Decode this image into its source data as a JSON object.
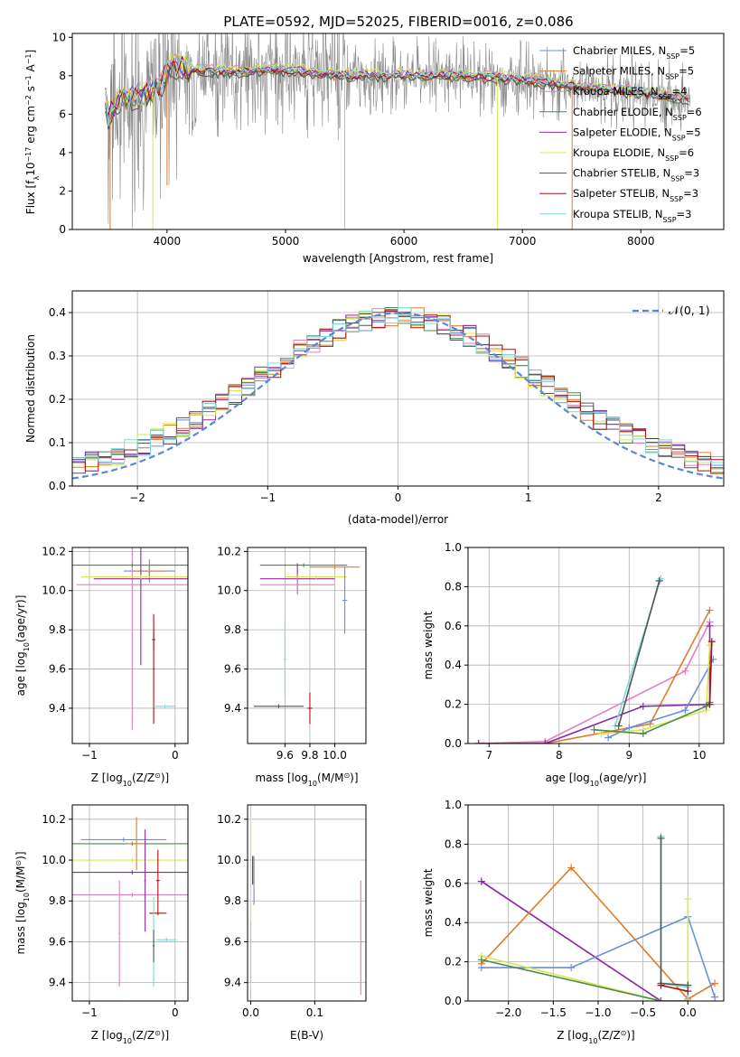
{
  "title": "PLATE=0592, MJD=52025, FIBERID=0016, z=0.086",
  "colors": [
    "#6a8fd8",
    "#e07b2a",
    "#e27fbf",
    "#4c8a4c",
    "#8a2aa8",
    "#d8e850",
    "#555555",
    "#aa1111",
    "#7fd8d8"
  ],
  "spectrum_color": "#8a8a8a",
  "chart_data": [
    {
      "id": "spectrum",
      "type": "line",
      "xlabel": "wavelength [Angstrom, rest frame]",
      "ylabel_parts": [
        "Flux [f",
        "λ",
        "10",
        "−17",
        " erg cm",
        "−2",
        " s",
        "−1",
        " A",
        "−1",
        "]"
      ],
      "xlim": [
        3200,
        8700
      ],
      "ylim": [
        0,
        10.2
      ],
      "xticks": [
        "4000",
        "5000",
        "6000",
        "7000",
        "8000"
      ],
      "yticks": [
        "0",
        "2",
        "4",
        "6",
        "8",
        "10"
      ],
      "legend_location": "top-right",
      "legend": [
        {
          "base": "Chabrier MILES, N",
          "sub": "SSP",
          "tail": "=5"
        },
        {
          "base": "Salpeter MILES, N",
          "sub": "SSP",
          "tail": "=5"
        },
        {
          "base": "Kroupa MILES, N",
          "sub": "SSP",
          "tail": "=4"
        },
        {
          "base": "Chabrier ELODIE, N",
          "sub": "SSP",
          "tail": "=6"
        },
        {
          "base": "Salpeter ELODIE, N",
          "sub": "SSP",
          "tail": "=5"
        },
        {
          "base": "Kroupa ELODIE, N",
          "sub": "SSP",
          "tail": "=6"
        },
        {
          "base": "Chabrier STELIB, N",
          "sub": "SSP",
          "tail": "=3"
        },
        {
          "base": "Salpeter STELIB, N",
          "sub": "SSP",
          "tail": "=3"
        },
        {
          "base": "Kroupa STELIB, N",
          "sub": "SSP",
          "tail": "=3"
        }
      ],
      "model_continuum": {
        "x": [
          3500,
          3600,
          3800,
          3950,
          4050,
          4200,
          4500,
          5000,
          5500,
          6000,
          6500,
          7000,
          7500,
          8000,
          8400
        ],
        "y": [
          5.8,
          6.8,
          7.0,
          7.6,
          8.6,
          8.3,
          8.2,
          8.3,
          8.0,
          8.0,
          8.0,
          7.8,
          7.4,
          7.1,
          6.8
        ]
      }
    },
    {
      "id": "residuals",
      "type": "histogram",
      "xlabel": "(data-model)/error",
      "ylabel": "Normed distribution",
      "xlim": [
        -2.5,
        2.5
      ],
      "ylim": [
        0,
        0.45
      ],
      "xticks": [
        "−2",
        "−1",
        "0",
        "1",
        "2"
      ],
      "yticks": [
        "0.0",
        "0.1",
        "0.2",
        "0.3",
        "0.4"
      ],
      "bin_width": 0.1,
      "gaussian_label": "𝒩(0, 1)",
      "gaussian_color": "#5b86d6"
    },
    {
      "id": "age-vs-Z",
      "type": "errorbar",
      "xlabel_parts": [
        "Z [log",
        "10",
        "(Z/Z",
        "⊙",
        ")]"
      ],
      "ylabel_parts": [
        "age  [log",
        "10",
        "(age/yr)]"
      ],
      "xlim": [
        -1.2,
        0.15
      ],
      "ylim": [
        9.22,
        10.22
      ],
      "xticks": [
        {
          "v": -1,
          "t": "−1"
        },
        {
          "v": 0,
          "t": "0"
        }
      ],
      "yticks": [
        {
          "v": 9.4,
          "t": "9.4"
        },
        {
          "v": 9.6,
          "t": "9.6"
        },
        {
          "v": 9.8,
          "t": "9.8"
        },
        {
          "v": 10.0,
          "t": "10.0"
        },
        {
          "v": 10.2,
          "t": "10.2"
        }
      ],
      "points": [
        {
          "x": -0.3,
          "xe": 0.3,
          "y": 10.1,
          "ye": 0.03,
          "c": 0
        },
        {
          "x": -0.3,
          "xe": 0.2,
          "y": 10.1,
          "ye": 0.06,
          "c": 1
        },
        {
          "x": -0.5,
          "xe": 0.65,
          "y": 10.03,
          "ye": 0.74,
          "c": 2
        },
        {
          "x": -0.5,
          "xe": 0.7,
          "y": 10.13,
          "ye": 0.01,
          "c": 3
        },
        {
          "x": -0.4,
          "xe": 0.55,
          "y": 10.06,
          "ye": 0.44,
          "c": 4
        },
        {
          "x": -0.4,
          "xe": 0.7,
          "y": 10.07,
          "ye": 0.01,
          "c": 5
        },
        {
          "x": -0.25,
          "xe": 0.02,
          "y": 9.75,
          "ye": 0.06,
          "c": 6
        },
        {
          "x": -0.25,
          "xe": 0.01,
          "y": 9.6,
          "ye": 0.28,
          "c": 7
        },
        {
          "x": -0.12,
          "xe": 0.13,
          "y": 9.41,
          "ye": 0.01,
          "c": 8
        }
      ]
    },
    {
      "id": "age-vs-mass",
      "type": "errorbar",
      "xlabel_parts": [
        "mass [log",
        "10",
        "(M/M",
        "⊙",
        ")]"
      ],
      "ylabel_parts": [],
      "xlim": [
        9.3,
        10.25
      ],
      "ylim": [
        9.22,
        10.22
      ],
      "xticks": [
        {
          "v": 9.6,
          "t": "9.6"
        },
        {
          "v": 9.8,
          "t": "9.8"
        },
        {
          "v": 10.0,
          "t": "10.0"
        }
      ],
      "yticks": [
        {
          "v": 9.4,
          "t": "9.4"
        },
        {
          "v": 9.6,
          "t": "9.6"
        },
        {
          "v": 9.8,
          "t": "9.8"
        },
        {
          "v": 10.0,
          "t": "10.0"
        },
        {
          "v": 10.2,
          "t": "10.2"
        }
      ],
      "points": [
        {
          "x": 9.75,
          "xe": 0.35,
          "y": 10.13,
          "ye": 0.01,
          "c": 3
        },
        {
          "x": 10.0,
          "xe": 0.2,
          "y": 10.12,
          "ye": 0.01,
          "c": 1
        },
        {
          "x": 9.7,
          "xe": 0.3,
          "y": 10.06,
          "ye": 0.08,
          "c": 4
        },
        {
          "x": 9.7,
          "xe": 0.3,
          "y": 10.03,
          "ye": 0.05,
          "c": 2
        },
        {
          "x": 9.85,
          "xe": 0.25,
          "y": 10.07,
          "ye": 0.01,
          "c": 5
        },
        {
          "x": 10.08,
          "xe": 0.02,
          "y": 9.95,
          "ye": 0.17,
          "c": 0
        },
        {
          "x": 9.6,
          "xe": 0.01,
          "y": 9.65,
          "ye": 0.2,
          "c": 8
        },
        {
          "x": 9.8,
          "xe": 0.02,
          "y": 9.4,
          "ye": 0.08,
          "c": 7
        },
        {
          "x": 9.55,
          "xe": 0.2,
          "y": 9.41,
          "ye": 0.01,
          "c": 6
        }
      ]
    },
    {
      "id": "weight-vs-age",
      "type": "line",
      "xlabel_parts": [
        "age  [log",
        "10",
        "(age/yr)]"
      ],
      "ylabel": "mass weight",
      "xlim": [
        6.7,
        10.35
      ],
      "ylim": [
        0,
        1.0
      ],
      "xticks": [
        {
          "v": 7,
          "t": "7"
        },
        {
          "v": 8,
          "t": "8"
        },
        {
          "v": 9,
          "t": "9"
        },
        {
          "v": 10,
          "t": "10"
        }
      ],
      "yticks": [
        {
          "v": 0,
          "t": "0.0"
        },
        {
          "v": 0.2,
          "t": "0.2"
        },
        {
          "v": 0.4,
          "t": "0.4"
        },
        {
          "v": 0.6,
          "t": "0.6"
        },
        {
          "v": 0.8,
          "t": "0.8"
        },
        {
          "v": 1.0,
          "t": "1.0"
        }
      ],
      "series": [
        {
          "c": 2,
          "x": [
            6.85,
            7.8,
            9.8,
            10.15
          ],
          "y": [
            0.0,
            0.01,
            0.37,
            0.62
          ]
        },
        {
          "c": 1,
          "x": [
            6.85,
            7.8,
            9.3,
            10.15
          ],
          "y": [
            0.0,
            0.0,
            0.1,
            0.68
          ]
        },
        {
          "c": 4,
          "x": [
            6.85,
            7.8,
            9.2,
            10.15,
            10.15
          ],
          "y": [
            0.0,
            0.0,
            0.19,
            0.2,
            0.6
          ]
        },
        {
          "c": 0,
          "x": [
            8.7,
            9.0,
            9.8,
            10.2
          ],
          "y": [
            0.03,
            0.08,
            0.17,
            0.43
          ]
        },
        {
          "c": 5,
          "x": [
            8.6,
            9.2,
            10.1,
            10.15
          ],
          "y": [
            0.05,
            0.07,
            0.17,
            0.5
          ]
        },
        {
          "c": 3,
          "x": [
            8.5,
            9.2,
            10.1,
            10.15
          ],
          "y": [
            0.07,
            0.05,
            0.19,
            0.21
          ]
        },
        {
          "c": 8,
          "x": [
            8.8,
            9.45
          ],
          "y": [
            0.09,
            0.84
          ]
        },
        {
          "c": 6,
          "x": [
            8.85,
            9.43
          ],
          "y": [
            0.09,
            0.83
          ]
        },
        {
          "c": 7,
          "x": [
            10.15,
            10.18
          ],
          "y": [
            0.2,
            0.52
          ]
        }
      ]
    },
    {
      "id": "mass-vs-Z",
      "type": "errorbar",
      "xlabel_parts": [
        "Z [log",
        "10",
        "(Z/Z",
        "⊙",
        ")]"
      ],
      "ylabel_parts": [
        "mass [log",
        "10",
        "(M/M",
        "⊙",
        ")]"
      ],
      "xlim": [
        -1.2,
        0.15
      ],
      "ylim": [
        9.31,
        10.27
      ],
      "xticks": [
        {
          "v": -1,
          "t": "−1"
        },
        {
          "v": 0,
          "t": "0"
        }
      ],
      "yticks": [
        {
          "v": 9.4,
          "t": "9.4"
        },
        {
          "v": 9.6,
          "t": "9.6"
        },
        {
          "v": 9.8,
          "t": "9.8"
        },
        {
          "v": 10.0,
          "t": "10.0"
        },
        {
          "v": 10.2,
          "t": "10.2"
        }
      ],
      "points": [
        {
          "x": -0.6,
          "xe": 0.5,
          "y": 10.1,
          "ye": 0.01,
          "c": 0
        },
        {
          "x": -0.5,
          "xe": 0.7,
          "y": 10.08,
          "ye": 0.01,
          "c": 3
        },
        {
          "x": -0.5,
          "xe": 0.7,
          "y": 10.0,
          "ye": 0.01,
          "c": 5
        },
        {
          "x": -0.45,
          "xe": 0.1,
          "y": 10.08,
          "ye": 0.13,
          "c": 1
        },
        {
          "x": -0.5,
          "xe": 0.7,
          "y": 9.94,
          "ye": 0.01,
          "c": 4
        },
        {
          "x": -0.5,
          "xe": 0.7,
          "y": 9.83,
          "ye": 0.01,
          "c": 2
        },
        {
          "x": -0.35,
          "xe": 0.01,
          "y": 9.9,
          "ye": 0.25,
          "c": 4
        },
        {
          "x": -0.2,
          "xe": 0.1,
          "y": 9.74,
          "ye": 0.01,
          "c": 7
        },
        {
          "x": -0.2,
          "xe": 0.02,
          "y": 9.9,
          "ye": 0.15,
          "c": 7
        },
        {
          "x": -0.1,
          "xe": 0.12,
          "y": 9.61,
          "ye": 0.01,
          "c": 8
        },
        {
          "x": -0.25,
          "xe": 0.01,
          "y": 9.6,
          "ye": 0.22,
          "c": 8
        },
        {
          "x": -0.65,
          "xe": 0.01,
          "y": 9.64,
          "ye": 0.26,
          "c": 2
        },
        {
          "x": -0.25,
          "xe": 0.01,
          "y": 9.58,
          "ye": 0.08,
          "c": 6
        }
      ]
    },
    {
      "id": "mass-vs-EBV",
      "type": "errorbar",
      "xlabel": "E(B-V)",
      "ylabel_parts": [],
      "xlim": [
        -0.005,
        0.18
      ],
      "ylim": [
        9.31,
        10.27
      ],
      "xticks": [
        {
          "v": 0,
          "t": "0.0"
        },
        {
          "v": 0.1,
          "t": "0.1"
        }
      ],
      "yticks": [
        {
          "v": 9.4,
          "t": "9.4"
        },
        {
          "v": 9.6,
          "t": "9.6"
        },
        {
          "v": 9.8,
          "t": "9.8"
        },
        {
          "v": 10.0,
          "t": "10.0"
        },
        {
          "v": 10.2,
          "t": "10.2"
        }
      ],
      "points": [
        {
          "x": 0.0,
          "xe": 0.0,
          "y": 9.8,
          "ye": 0.42,
          "c": 5
        },
        {
          "x": 0.003,
          "xe": 0.0,
          "y": 9.95,
          "ye": 0.07,
          "c": 7
        },
        {
          "x": 0.005,
          "xe": 0.0,
          "y": 9.9,
          "ye": 0.12,
          "c": 0
        },
        {
          "x": 0.0,
          "xe": 0.0,
          "y": 9.55,
          "ye": 0.15,
          "c": 8
        },
        {
          "x": 0.172,
          "xe": 0.0,
          "y": 9.62,
          "ye": 0.28,
          "c": 2
        }
      ]
    },
    {
      "id": "weight-vs-Z",
      "type": "line",
      "xlabel_parts": [
        "Z [log",
        "10",
        "(Z/Z",
        "⊙",
        ")]"
      ],
      "ylabel": "mass weight",
      "xlim": [
        -2.45,
        0.4
      ],
      "ylim": [
        0,
        1.0
      ],
      "xticks": [
        {
          "v": -2.0,
          "t": "−2.0"
        },
        {
          "v": -1.5,
          "t": "−1.5"
        },
        {
          "v": -1.0,
          "t": "−1.0"
        },
        {
          "v": -0.5,
          "t": "−0.5"
        },
        {
          "v": 0.0,
          "t": "0.0"
        }
      ],
      "yticks": [
        {
          "v": 0,
          "t": "0.0"
        },
        {
          "v": 0.2,
          "t": "0.2"
        },
        {
          "v": 0.4,
          "t": "0.4"
        },
        {
          "v": 0.6,
          "t": "0.6"
        },
        {
          "v": 0.8,
          "t": "0.8"
        },
        {
          "v": 1.0,
          "t": "1.0"
        }
      ],
      "series": [
        {
          "c": 2,
          "x": [
            -2.3,
            -0.3,
            0.0
          ],
          "y": [
            0.61,
            0.0,
            0.0
          ]
        },
        {
          "c": 4,
          "x": [
            -2.3,
            -0.3
          ],
          "y": [
            0.61,
            0.0
          ]
        },
        {
          "c": 1,
          "x": [
            -2.3,
            -1.3,
            0.0,
            0.3
          ],
          "y": [
            0.19,
            0.68,
            0.01,
            0.09
          ]
        },
        {
          "c": 0,
          "x": [
            -2.3,
            -1.3,
            0.0,
            0.3
          ],
          "y": [
            0.17,
            0.17,
            0.43,
            0.02
          ]
        },
        {
          "c": 5,
          "x": [
            -2.3,
            -0.3,
            0.0,
            0.0
          ],
          "y": [
            0.23,
            0.0,
            0.0,
            0.52
          ]
        },
        {
          "c": 3,
          "x": [
            -2.3,
            -0.3,
            0.0
          ],
          "y": [
            0.21,
            0.0,
            0.0
          ]
        },
        {
          "c": 8,
          "x": [
            -0.3,
            -0.3,
            0.0,
            0.0
          ],
          "y": [
            0.84,
            0.09,
            0.07,
            0.0
          ]
        },
        {
          "c": 6,
          "x": [
            -0.3,
            -0.3,
            0.0
          ],
          "y": [
            0.83,
            0.09,
            0.08
          ]
        },
        {
          "c": 7,
          "x": [
            -0.3,
            0.0
          ],
          "y": [
            0.08,
            0.05
          ]
        }
      ]
    }
  ]
}
